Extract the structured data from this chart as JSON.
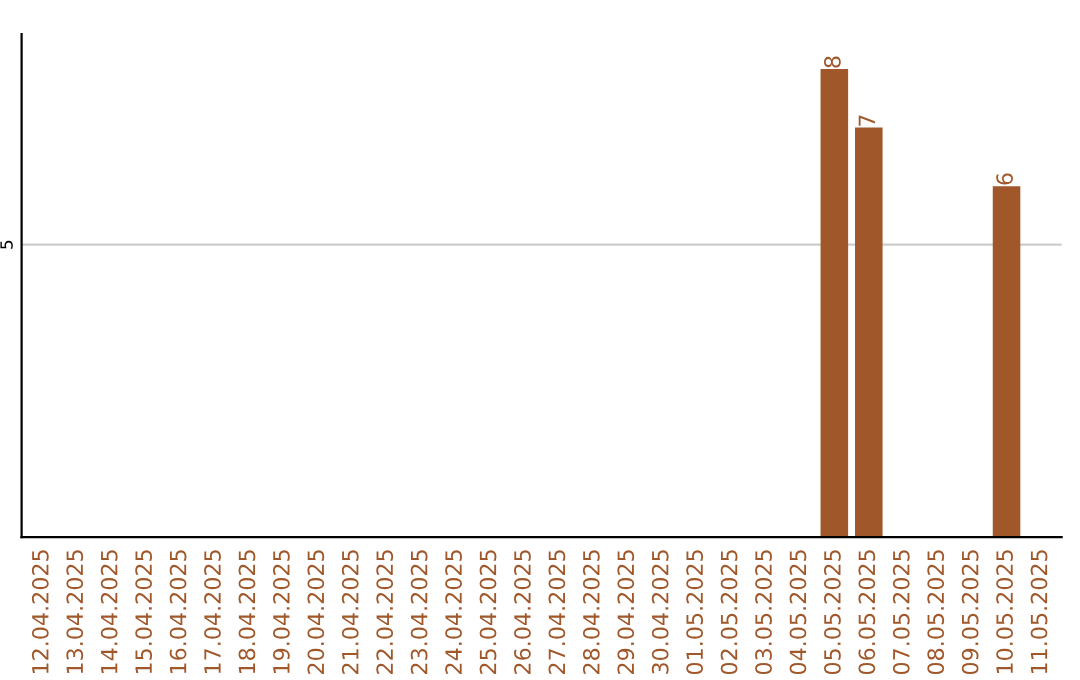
{
  "chart_data": {
    "type": "bar",
    "categories": [
      "12.04.2025",
      "13.04.2025",
      "14.04.2025",
      "15.04.2025",
      "16.04.2025",
      "17.04.2025",
      "18.04.2025",
      "19.04.2025",
      "20.04.2025",
      "21.04.2025",
      "22.04.2025",
      "23.04.2025",
      "24.04.2025",
      "25.04.2025",
      "26.04.2025",
      "27.04.2025",
      "28.04.2025",
      "29.04.2025",
      "30.04.2025",
      "01.05.2025",
      "02.05.2025",
      "03.05.2025",
      "04.05.2025",
      "05.05.2025",
      "06.05.2025",
      "07.05.2025",
      "08.05.2025",
      "09.05.2025",
      "10.05.2025",
      "11.05.2025"
    ],
    "values": [
      null,
      null,
      null,
      null,
      null,
      null,
      null,
      null,
      null,
      null,
      null,
      null,
      null,
      null,
      null,
      null,
      null,
      null,
      null,
      null,
      null,
      null,
      null,
      8,
      7,
      null,
      null,
      null,
      6,
      null
    ],
    "color": "#a0582b",
    "ylim": [
      0,
      8.6
    ],
    "yticks": [
      5
    ],
    "grid": "y",
    "data_labels": true
  }
}
